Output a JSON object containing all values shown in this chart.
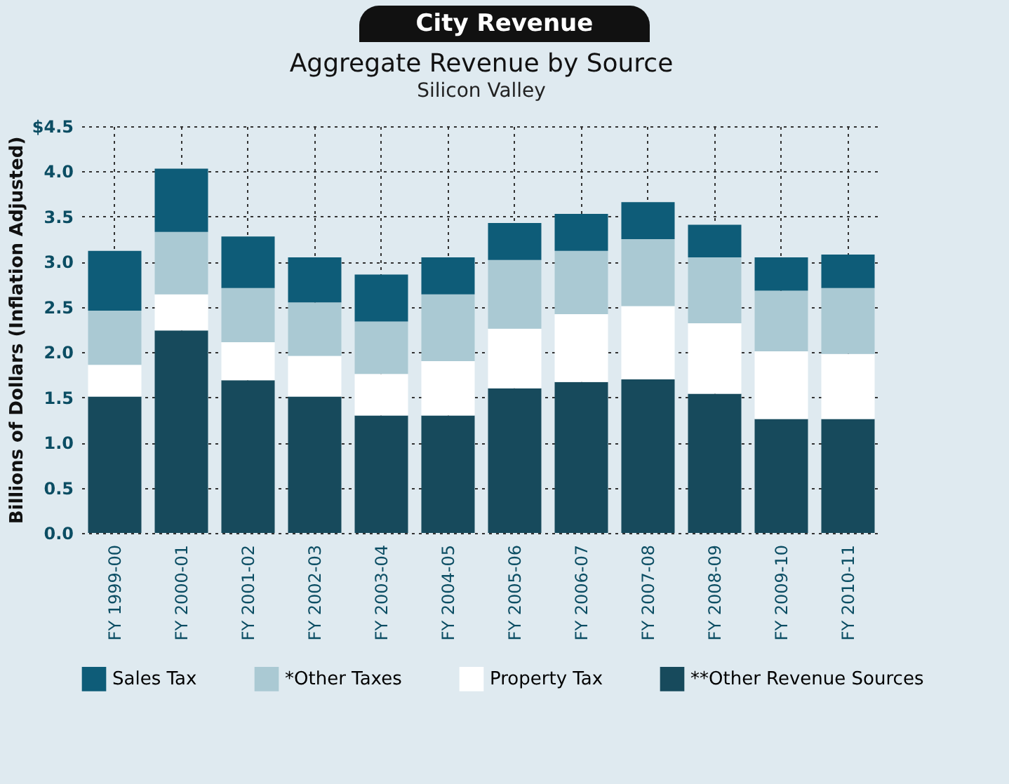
{
  "chart_data": {
    "type": "bar",
    "title": "Aggregate Revenue by Source",
    "subtitle": "Silicon Valley",
    "ylabel": "Billions of Dollars (Inflation Adjusted)",
    "annotations": [
      "City Revenue"
    ],
    "categories": [
      "FY 1999-00",
      "FY 2000-01",
      "FY 2001-02",
      "FY 2002-03",
      "FY 2003-04",
      "FY 2004-05",
      "FY 2005-06",
      "FY 2006-07",
      "FY 2007-08",
      "FY 2008-09",
      "FY 2009-10",
      "FY 2010-11"
    ],
    "stacked": true,
    "series": [
      {
        "name": "**Other Revenue Sources",
        "color": "#174a5c",
        "values": [
          1.51,
          2.24,
          1.69,
          1.51,
          1.3,
          1.3,
          1.6,
          1.67,
          1.7,
          1.54,
          1.26,
          1.26
        ]
      },
      {
        "name": "Property Tax",
        "color": "#ffffff",
        "values": [
          0.35,
          0.4,
          0.42,
          0.45,
          0.46,
          0.6,
          0.66,
          0.75,
          0.81,
          0.78,
          0.75,
          0.72
        ]
      },
      {
        "name": "*Other Taxes",
        "color": "#aac9d3",
        "values": [
          0.6,
          0.69,
          0.6,
          0.59,
          0.58,
          0.74,
          0.76,
          0.7,
          0.74,
          0.73,
          0.67,
          0.73
        ]
      },
      {
        "name": "Sales Tax",
        "color": "#0e5c78",
        "values": [
          0.66,
          0.7,
          0.57,
          0.5,
          0.52,
          0.41,
          0.41,
          0.41,
          0.41,
          0.36,
          0.37,
          0.37
        ]
      }
    ],
    "ylim": [
      0,
      4.5
    ],
    "yticks": [
      "0.0",
      {
        "value": 0.5,
        "label": "0.5"
      },
      {
        "value": 1,
        "label": "1.0"
      },
      {
        "value": 1.5,
        "label": "1.5"
      },
      {
        "value": 2,
        "label": "2.0"
      },
      {
        "value": 2.5,
        "label": "2.5"
      },
      {
        "value": 3,
        "label": "3.0"
      },
      {
        "value": 3.5,
        "label": "3.5"
      },
      {
        "value": 4,
        "label": "4.0"
      },
      {
        "value": 4.5,
        "label": "$4.5"
      }
    ],
    "grid": true,
    "legend": "bottom"
  }
}
